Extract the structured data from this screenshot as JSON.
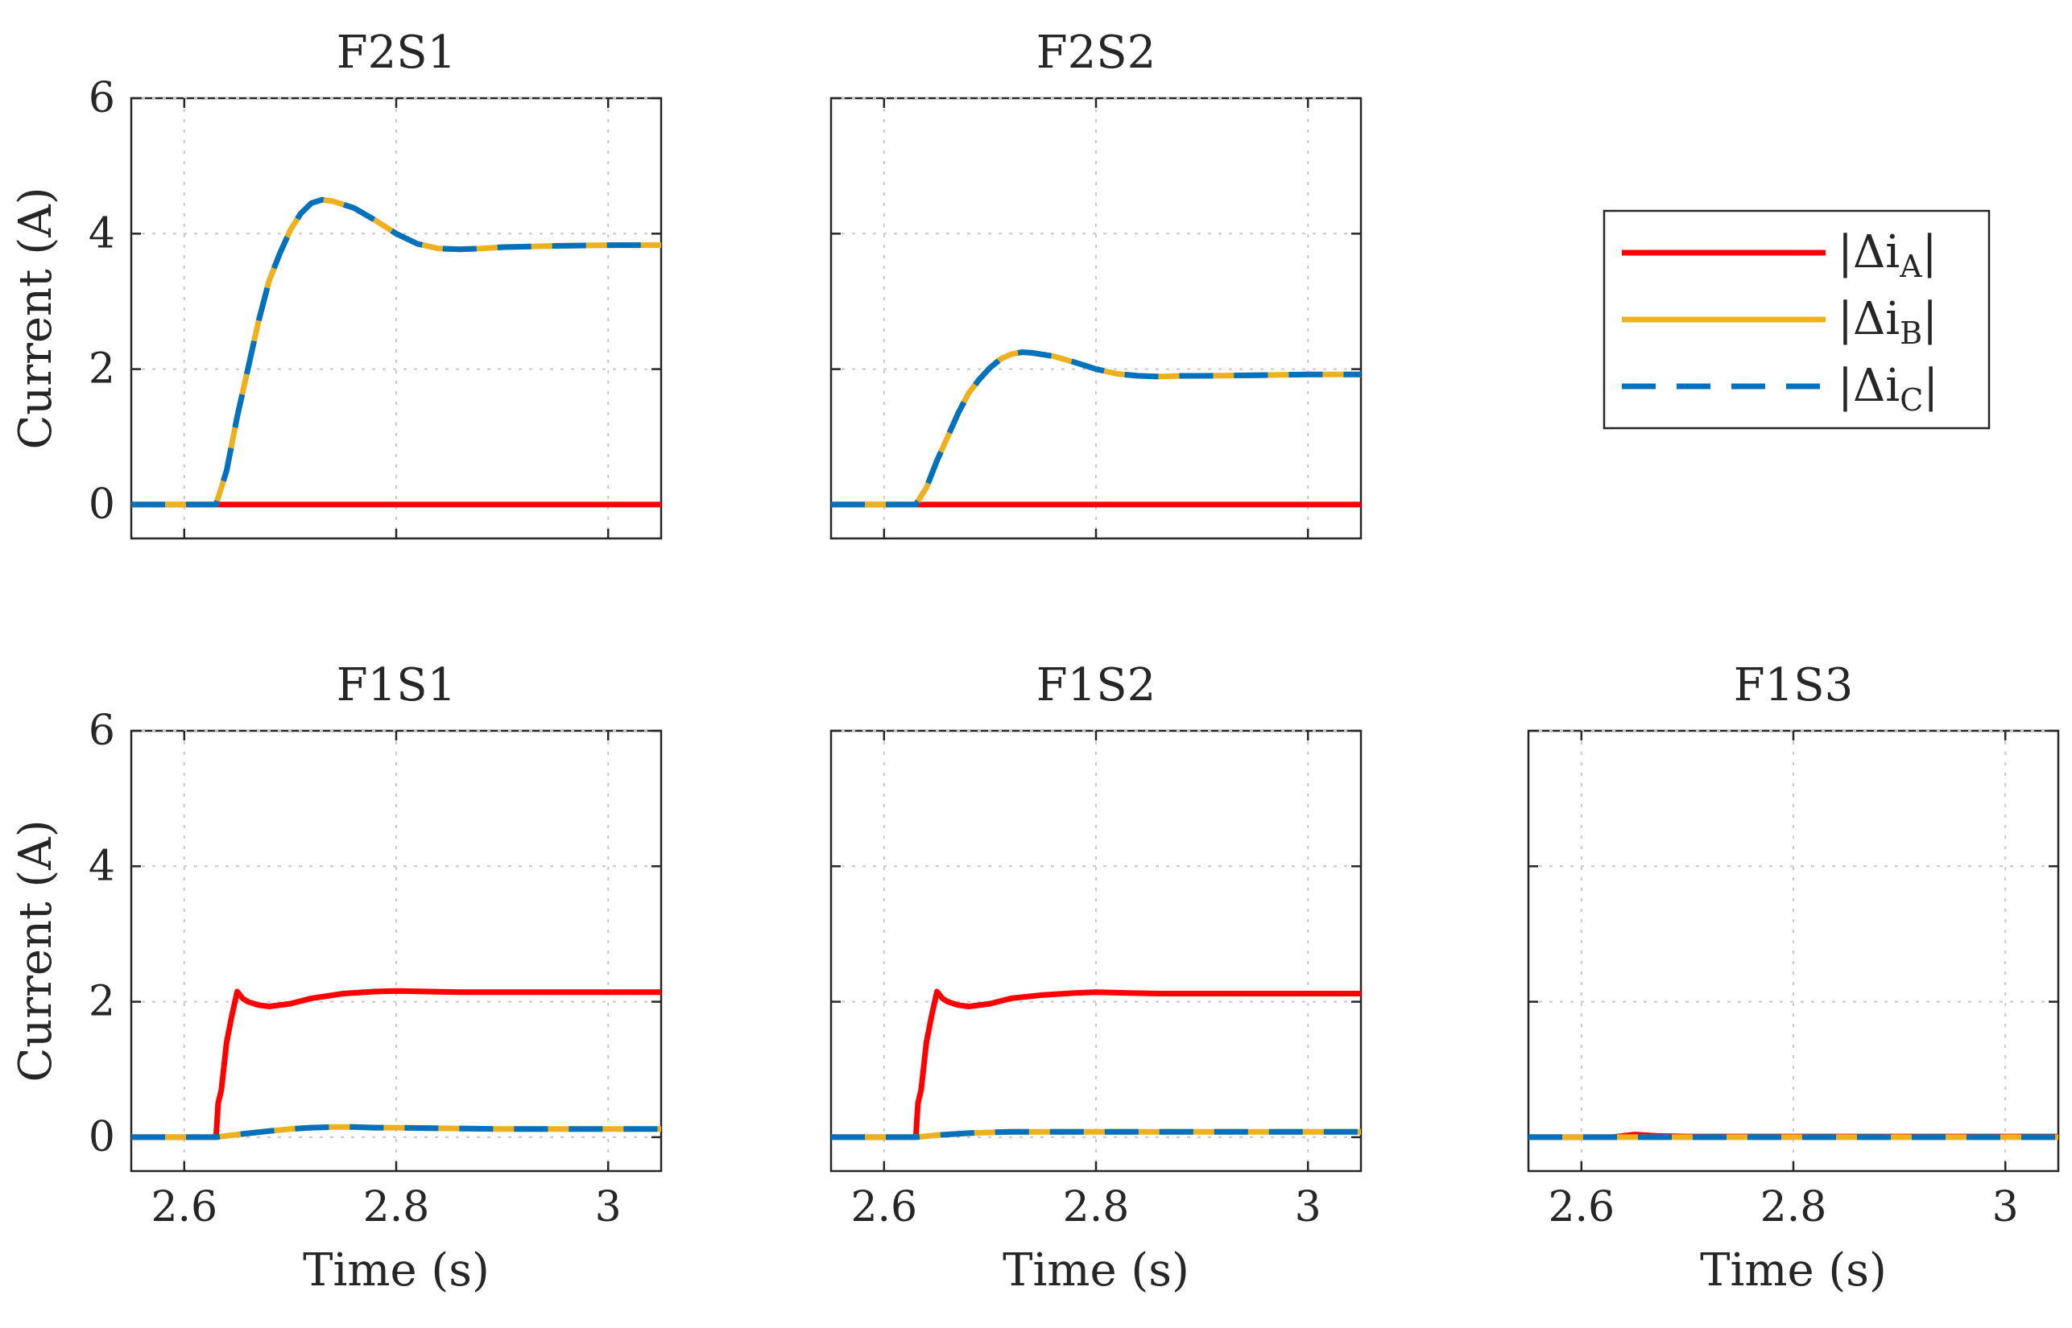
{
  "chart_data": {
    "type": "line",
    "layout": "2x3 grid of subplots (top-right cell holds legend)",
    "xlabel": "Time (s)",
    "ylabel": "Current (A)",
    "xlim": [
      2.55,
      3.05
    ],
    "ylim": [
      -0.5,
      6
    ],
    "xticks": [
      2.6,
      2.8,
      3
    ],
    "xtick_labels": [
      "2.6",
      "2.8",
      "3"
    ],
    "yticks": [
      0,
      2,
      4,
      6
    ],
    "ytick_labels": [
      "0",
      "2",
      "4",
      "6"
    ],
    "grid": true,
    "legend": {
      "placement": "top-right cell",
      "entries": [
        {
          "key": "A",
          "label": "|Δi_A|",
          "base": "|Δi",
          "sub": "A",
          "close": "|",
          "color": "#ff0000",
          "style": "solid"
        },
        {
          "key": "B",
          "label": "|Δi_B|",
          "base": "|Δi",
          "sub": "B",
          "close": "|",
          "color": "#edb120",
          "style": "solid"
        },
        {
          "key": "C",
          "label": "|Δi_C|",
          "base": "|Δi",
          "sub": "C",
          "close": "|",
          "color": "#0072bd",
          "style": "dashed"
        }
      ]
    },
    "subplots": [
      {
        "title": "F2S1",
        "row": 0,
        "col": 0,
        "series": [
          {
            "name": "|Δi_A|",
            "x": [
              2.55,
              3.05
            ],
            "y": [
              0,
              0
            ]
          },
          {
            "name": "|Δi_B|",
            "x": [
              2.55,
              2.63,
              2.64,
              2.65,
              2.66,
              2.67,
              2.68,
              2.69,
              2.7,
              2.71,
              2.72,
              2.73,
              2.74,
              2.76,
              2.78,
              2.8,
              2.82,
              2.84,
              2.86,
              2.88,
              2.9,
              2.95,
              3.0,
              3.05
            ],
            "y": [
              0,
              0,
              0.5,
              1.3,
              2.0,
              2.7,
              3.3,
              3.7,
              4.05,
              4.3,
              4.45,
              4.5,
              4.48,
              4.38,
              4.2,
              4.0,
              3.85,
              3.78,
              3.77,
              3.78,
              3.8,
              3.82,
              3.83,
              3.83
            ]
          },
          {
            "name": "|Δi_C|",
            "x": [
              2.55,
              2.63,
              2.64,
              2.65,
              2.66,
              2.67,
              2.68,
              2.69,
              2.7,
              2.71,
              2.72,
              2.73,
              2.74,
              2.76,
              2.78,
              2.8,
              2.82,
              2.84,
              2.86,
              2.88,
              2.9,
              2.95,
              3.0,
              3.05
            ],
            "y": [
              0,
              0,
              0.5,
              1.3,
              2.0,
              2.7,
              3.3,
              3.7,
              4.05,
              4.3,
              4.45,
              4.5,
              4.48,
              4.38,
              4.2,
              4.0,
              3.85,
              3.78,
              3.77,
              3.78,
              3.8,
              3.82,
              3.83,
              3.83
            ]
          }
        ]
      },
      {
        "title": "F2S2",
        "row": 0,
        "col": 1,
        "series": [
          {
            "name": "|Δi_A|",
            "x": [
              2.55,
              3.05
            ],
            "y": [
              0,
              0
            ]
          },
          {
            "name": "|Δi_B|",
            "x": [
              2.55,
              2.63,
              2.64,
              2.65,
              2.66,
              2.67,
              2.68,
              2.69,
              2.7,
              2.71,
              2.72,
              2.73,
              2.74,
              2.76,
              2.78,
              2.8,
              2.82,
              2.84,
              2.86,
              2.88,
              2.9,
              2.95,
              3.0,
              3.05
            ],
            "y": [
              0,
              0,
              0.25,
              0.65,
              1.0,
              1.35,
              1.65,
              1.85,
              2.02,
              2.15,
              2.22,
              2.25,
              2.24,
              2.19,
              2.1,
              2.0,
              1.93,
              1.9,
              1.89,
              1.9,
              1.9,
              1.91,
              1.92,
              1.92
            ]
          },
          {
            "name": "|Δi_C|",
            "x": [
              2.55,
              2.63,
              2.64,
              2.65,
              2.66,
              2.67,
              2.68,
              2.69,
              2.7,
              2.71,
              2.72,
              2.73,
              2.74,
              2.76,
              2.78,
              2.8,
              2.82,
              2.84,
              2.86,
              2.88,
              2.9,
              2.95,
              3.0,
              3.05
            ],
            "y": [
              0,
              0,
              0.25,
              0.65,
              1.0,
              1.35,
              1.65,
              1.85,
              2.02,
              2.15,
              2.22,
              2.25,
              2.24,
              2.19,
              2.1,
              2.0,
              1.93,
              1.9,
              1.89,
              1.9,
              1.9,
              1.91,
              1.92,
              1.92
            ]
          }
        ]
      },
      {
        "title": "F1S1",
        "row": 1,
        "col": 0,
        "series": [
          {
            "name": "|Δi_A|",
            "x": [
              2.55,
              2.63,
              2.632,
              2.635,
              2.64,
              2.645,
              2.65,
              2.655,
              2.66,
              2.67,
              2.68,
              2.7,
              2.72,
              2.75,
              2.78,
              2.8,
              2.83,
              2.86,
              2.9,
              2.95,
              3.0,
              3.05
            ],
            "y": [
              0,
              0,
              0.5,
              0.7,
              1.4,
              1.8,
              2.15,
              2.05,
              2.0,
              1.95,
              1.93,
              1.97,
              2.05,
              2.12,
              2.15,
              2.16,
              2.15,
              2.14,
              2.14,
              2.14,
              2.14,
              2.14
            ]
          },
          {
            "name": "|Δi_B|",
            "x": [
              2.55,
              2.63,
              2.65,
              2.68,
              2.7,
              2.72,
              2.74,
              2.76,
              2.78,
              2.8,
              2.85,
              2.9,
              2.95,
              3.0,
              3.05
            ],
            "y": [
              0,
              0,
              0.04,
              0.09,
              0.12,
              0.14,
              0.15,
              0.15,
              0.14,
              0.14,
              0.13,
              0.12,
              0.12,
              0.12,
              0.12
            ]
          },
          {
            "name": "|Δi_C|",
            "x": [
              2.55,
              2.63,
              2.65,
              2.68,
              2.7,
              2.72,
              2.74,
              2.76,
              2.78,
              2.8,
              2.85,
              2.9,
              2.95,
              3.0,
              3.05
            ],
            "y": [
              0,
              0,
              0.04,
              0.09,
              0.12,
              0.14,
              0.15,
              0.15,
              0.14,
              0.14,
              0.13,
              0.12,
              0.12,
              0.12,
              0.12
            ]
          }
        ]
      },
      {
        "title": "F1S2",
        "row": 1,
        "col": 1,
        "series": [
          {
            "name": "|Δi_A|",
            "x": [
              2.55,
              2.63,
              2.632,
              2.635,
              2.64,
              2.645,
              2.65,
              2.655,
              2.66,
              2.67,
              2.68,
              2.7,
              2.72,
              2.75,
              2.78,
              2.8,
              2.83,
              2.86,
              2.9,
              2.95,
              3.0,
              3.05
            ],
            "y": [
              0,
              0,
              0.5,
              0.7,
              1.4,
              1.8,
              2.15,
              2.05,
              2.0,
              1.95,
              1.93,
              1.97,
              2.05,
              2.1,
              2.13,
              2.14,
              2.13,
              2.12,
              2.12,
              2.12,
              2.12,
              2.12
            ]
          },
          {
            "name": "|Δi_B|",
            "x": [
              2.55,
              2.63,
              2.65,
              2.68,
              2.7,
              2.72,
              2.75,
              2.8,
              2.85,
              2.9,
              2.95,
              3.0,
              3.05
            ],
            "y": [
              0,
              0,
              0.03,
              0.06,
              0.07,
              0.08,
              0.08,
              0.08,
              0.08,
              0.08,
              0.08,
              0.08,
              0.08
            ]
          },
          {
            "name": "|Δi_C|",
            "x": [
              2.55,
              2.63,
              2.65,
              2.68,
              2.7,
              2.72,
              2.75,
              2.8,
              2.85,
              2.9,
              2.95,
              3.0,
              3.05
            ],
            "y": [
              0,
              0,
              0.03,
              0.06,
              0.07,
              0.08,
              0.08,
              0.08,
              0.08,
              0.08,
              0.08,
              0.08,
              0.08
            ]
          }
        ]
      },
      {
        "title": "F1S3",
        "row": 1,
        "col": 2,
        "series": [
          {
            "name": "|Δi_A|",
            "x": [
              2.55,
              2.63,
              2.64,
              2.65,
              2.66,
              2.67,
              2.7,
              3.05
            ],
            "y": [
              0,
              0,
              0.02,
              0.04,
              0.03,
              0.02,
              0.01,
              0.01
            ]
          },
          {
            "name": "|Δi_B|",
            "x": [
              2.55,
              3.05
            ],
            "y": [
              0,
              0
            ]
          },
          {
            "name": "|Δi_C|",
            "x": [
              2.55,
              3.05
            ],
            "y": [
              0,
              0
            ]
          }
        ]
      }
    ]
  }
}
